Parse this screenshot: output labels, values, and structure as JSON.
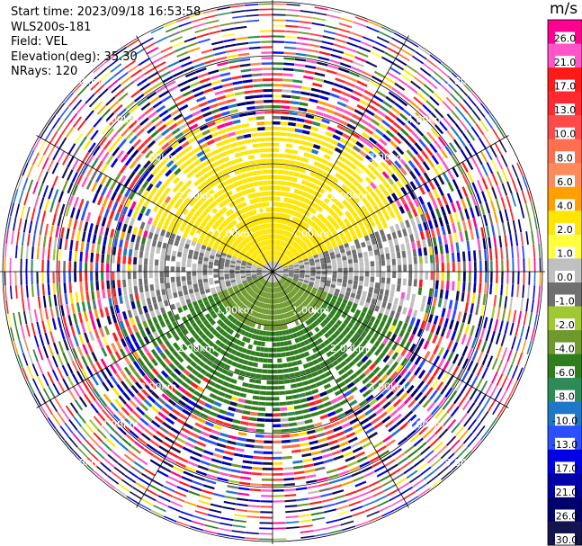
{
  "header": {
    "start_time": "Start time: 2023/09/18 16:53:58",
    "instrument": "WLS200s-181",
    "field": "Field: VEL",
    "elevation": "Elevation(deg): 35.30",
    "nrays": "NRays: 120"
  },
  "colorbar": {
    "unit": "m/s",
    "labels": [
      "26.0",
      "21.0",
      "17.0",
      "13.0",
      "10.0",
      "8.0",
      "6.0",
      "4.0",
      "2.0",
      "1.0",
      "0.0",
      "-1.0",
      "-2.0",
      "-4.0",
      "-6.0",
      "-8.0",
      "-10.0",
      "-13.0",
      "-17.0",
      "-21.0",
      "-26.0",
      "-30.0"
    ],
    "colors": [
      "#ff0090",
      "#ff55c8",
      "#ff1a1a",
      "#ff2a30",
      "#ff4a4a",
      "#ff6f50",
      "#ff8a5a",
      "#ffa000",
      "#ffe600",
      "#ffff40",
      "#c0c0c0",
      "#707070",
      "#a0c830",
      "#6e9a2c",
      "#2f7e1e",
      "#2e8b57",
      "#1e78c8",
      "#2b4fff",
      "#0000e6",
      "#0000a8",
      "#00006e",
      "#141450"
    ]
  },
  "chart_data": {
    "type": "heatmap",
    "subtype": "polar-ppi",
    "field": "VEL",
    "unit": "m/s",
    "nrays": 120,
    "elevation_deg": 35.3,
    "range_ring_labels": [
      "1.00km",
      "2.00km",
      "3.00km",
      "4.00km",
      "5.00km"
    ],
    "color_scale": {
      "boundaries": [
        -30,
        -26,
        -21,
        -17,
        -13,
        -10,
        -8,
        -6,
        -4,
        -2,
        -1,
        0,
        1,
        2,
        4,
        6,
        8,
        10,
        13,
        17,
        21,
        26
      ]
    },
    "near_field_pattern": {
      "north_sector_velocity": 3.0,
      "west_east_band_velocity": 0.0,
      "south_sector_velocity": -4.0,
      "far_range_km": 3.0,
      "far_range_description": "noise / random values"
    }
  }
}
